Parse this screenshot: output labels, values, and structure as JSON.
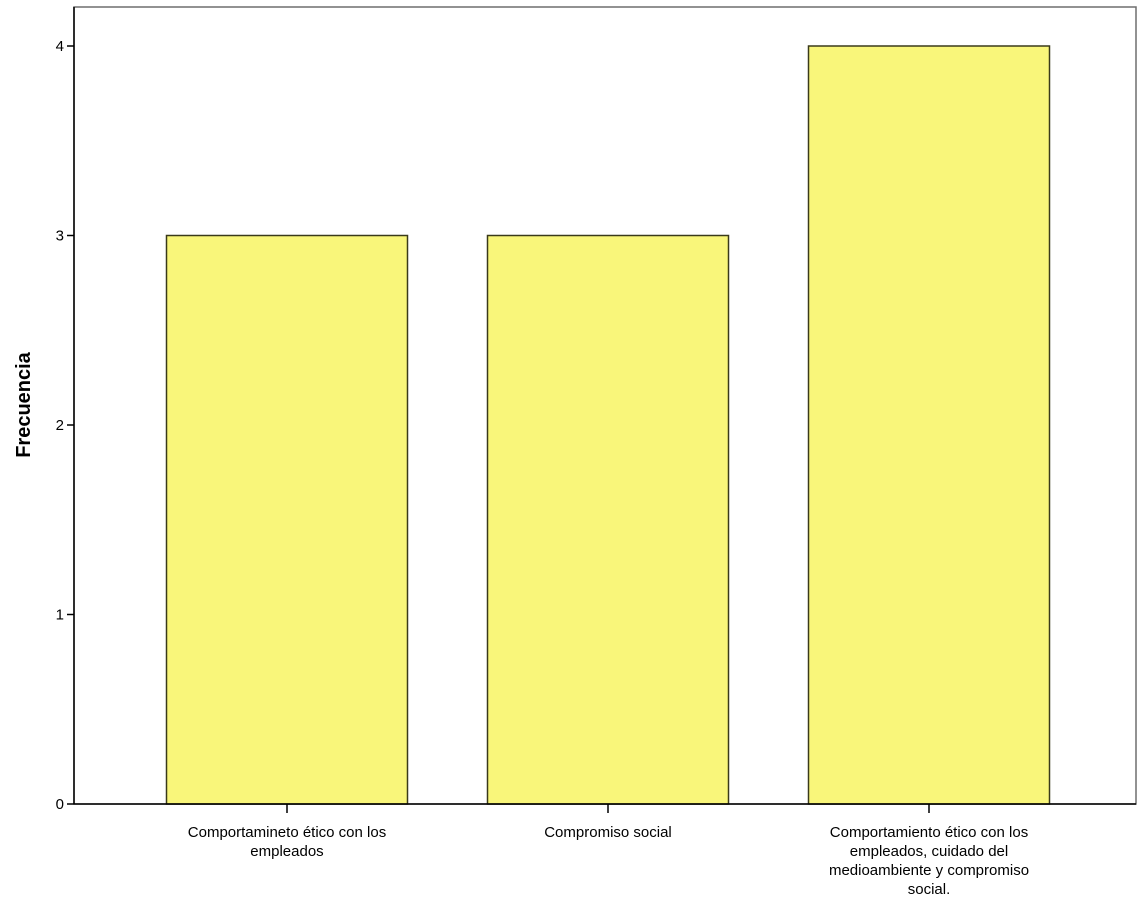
{
  "chart_data": {
    "type": "bar",
    "title": "",
    "xlabel": "",
    "ylabel": "Frecuencia",
    "ylim": [
      0,
      4.2
    ],
    "yticks": [
      0,
      1,
      2,
      3,
      4
    ],
    "grid": false,
    "categories": [
      [
        "Comportamineto ético con los",
        "empleados"
      ],
      [
        "Compromiso social"
      ],
      [
        "Comportamiento ético con los",
        "empleados, cuidado del",
        "medioambiente y compromiso",
        "social."
      ]
    ],
    "values": [
      3,
      3,
      4
    ],
    "colors": {
      "bar_fill": "#f9f67a",
      "bar_stroke": "#3a3a1a",
      "axis": "#000000",
      "frame": "#6e6e6e"
    }
  }
}
